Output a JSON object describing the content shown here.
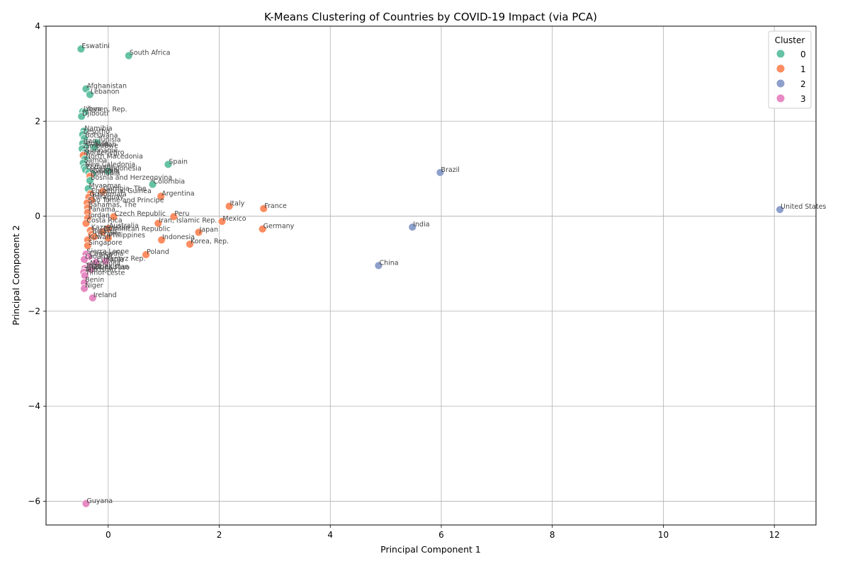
{
  "chart_data": {
    "type": "scatter",
    "title": "K-Means Clustering of Countries by COVID-19 Impact (via PCA)",
    "xlabel": "Principal Component 1",
    "ylabel": "Principal Component 2",
    "xlim": [
      -1.12,
      12.75
    ],
    "ylim": [
      -6.5,
      4.0
    ],
    "xticks": [
      0,
      2,
      4,
      6,
      8,
      10,
      12
    ],
    "yticks": [
      -6,
      -4,
      -2,
      0,
      2,
      4
    ],
    "xtick_labels": [
      "0",
      "2",
      "4",
      "6",
      "8",
      "10",
      "12"
    ],
    "ytick_labels": [
      "−6",
      "−4",
      "−2",
      "0",
      "2",
      "4"
    ],
    "grid": true,
    "legend": {
      "title": "Cluster",
      "placement": "top-right",
      "entries": [
        {
          "label": "0",
          "color": "#66c2a5"
        },
        {
          "label": "1",
          "color": "#fc8d62"
        },
        {
          "label": "2",
          "color": "#8da0cb"
        },
        {
          "label": "3",
          "color": "#e78ac3"
        }
      ]
    },
    "colors": {
      "0": "#66c2a5",
      "1": "#fc8d62",
      "2": "#8da0cb",
      "3": "#e78ac3"
    },
    "points": [
      {
        "name": "Eswatini",
        "x": -0.49,
        "y": 3.52,
        "cluster": 0
      },
      {
        "name": "South Africa",
        "x": 0.37,
        "y": 3.38,
        "cluster": 0
      },
      {
        "name": "Afghanistan",
        "x": -0.4,
        "y": 2.68,
        "cluster": 0
      },
      {
        "name": "Lebanon",
        "x": -0.33,
        "y": 2.56,
        "cluster": 0
      },
      {
        "name": "Libya",
        "x": -0.46,
        "y": 2.2,
        "cluster": 0
      },
      {
        "name": "Yemen, Rep.",
        "x": -0.42,
        "y": 2.19,
        "cluster": 0
      },
      {
        "name": "Djibouti",
        "x": -0.48,
        "y": 2.1,
        "cluster": 0
      },
      {
        "name": "Namibia",
        "x": -0.44,
        "y": 1.79,
        "cluster": 0
      },
      {
        "name": "Lesotho",
        "x": -0.46,
        "y": 1.72,
        "cluster": 0
      },
      {
        "name": "Botswana",
        "x": -0.43,
        "y": 1.64,
        "cluster": 0
      },
      {
        "name": "Tunisia",
        "x": -0.2,
        "y": 1.55,
        "cluster": 0
      },
      {
        "name": "Iraq",
        "x": -0.46,
        "y": 1.53,
        "cluster": 0
      },
      {
        "name": "Bolivia",
        "x": -0.41,
        "y": 1.47,
        "cluster": 0
      },
      {
        "name": "Sudan",
        "x": -0.25,
        "y": 1.45,
        "cluster": 0
      },
      {
        "name": "Zimbabwe",
        "x": -0.47,
        "y": 1.42,
        "cluster": 0
      },
      {
        "name": "Suriname",
        "x": -0.42,
        "y": 1.33,
        "cluster": 0
      },
      {
        "name": "Montenegro",
        "x": -0.45,
        "y": 1.28,
        "cluster": 1
      },
      {
        "name": "North Macedonia",
        "x": -0.42,
        "y": 1.2,
        "cluster": 0
      },
      {
        "name": "Samoa",
        "x": -0.45,
        "y": 1.12,
        "cluster": 0
      },
      {
        "name": "New Caledonia",
        "x": -0.43,
        "y": 1.03,
        "cluster": 0
      },
      {
        "name": "Ecuador",
        "x": -0.41,
        "y": 0.98,
        "cluster": 0
      },
      {
        "name": "Indonesia",
        "x": 0.0,
        "y": 0.95,
        "cluster": 0
      },
      {
        "name": "Moldova",
        "x": -0.35,
        "y": 0.92,
        "cluster": 0
      },
      {
        "name": "Georgia",
        "x": -0.28,
        "y": 0.89,
        "cluster": 0
      },
      {
        "name": "Romania",
        "x": -0.33,
        "y": 0.84,
        "cluster": 1
      },
      {
        "name": "Bosnia and Herzegovina",
        "x": -0.33,
        "y": 0.75,
        "cluster": 0
      },
      {
        "name": "Colombia",
        "x": 0.8,
        "y": 0.67,
        "cluster": 0
      },
      {
        "name": "Myanmar",
        "x": -0.36,
        "y": 0.58,
        "cluster": 0
      },
      {
        "name": "Gambia, The",
        "x": -0.1,
        "y": 0.52,
        "cluster": 1
      },
      {
        "name": "Equatorial Guinea",
        "x": -0.32,
        "y": 0.47,
        "cluster": 1
      },
      {
        "name": "Argentina",
        "x": 0.95,
        "y": 0.42,
        "cluster": 1
      },
      {
        "name": "Guatemala",
        "x": -0.35,
        "y": 0.4,
        "cluster": 1
      },
      {
        "name": "Paraguay",
        "x": -0.3,
        "y": 0.34,
        "cluster": 1
      },
      {
        "name": "Sao Tome and Principe",
        "x": -0.38,
        "y": 0.28,
        "cluster": 1
      },
      {
        "name": "Spain",
        "x": 1.08,
        "y": 1.09,
        "cluster": 0
      },
      {
        "name": "Italy",
        "x": 2.18,
        "y": 0.21,
        "cluster": 1
      },
      {
        "name": "France",
        "x": 2.8,
        "y": 0.16,
        "cluster": 1
      },
      {
        "name": "Bahamas, The",
        "x": -0.37,
        "y": 0.18,
        "cluster": 1
      },
      {
        "name": "Panama",
        "x": -0.37,
        "y": 0.08,
        "cluster": 1
      },
      {
        "name": "Czech Republic",
        "x": 0.1,
        "y": -0.01,
        "cluster": 1
      },
      {
        "name": "Peru",
        "x": 1.18,
        "y": -0.01,
        "cluster": 1
      },
      {
        "name": "Jordan",
        "x": -0.37,
        "y": -0.04,
        "cluster": 1
      },
      {
        "name": "Mexico",
        "x": 2.05,
        "y": -0.11,
        "cluster": 1
      },
      {
        "name": "Iran, Islamic Rep.",
        "x": 0.9,
        "y": -0.15,
        "cluster": 1
      },
      {
        "name": "Costa Rica",
        "x": -0.4,
        "y": -0.15,
        "cluster": 1
      },
      {
        "name": "Germany",
        "x": 2.78,
        "y": -0.27,
        "cluster": 1
      },
      {
        "name": "Australia",
        "x": 0.0,
        "y": -0.26,
        "cluster": 1
      },
      {
        "name": "Kazakhstan",
        "x": -0.32,
        "y": -0.3,
        "cluster": 1
      },
      {
        "name": "Dominican Republic",
        "x": -0.1,
        "y": -0.33,
        "cluster": 1
      },
      {
        "name": "Japan",
        "x": 1.63,
        "y": -0.34,
        "cluster": 1
      },
      {
        "name": "Belarus",
        "x": -0.3,
        "y": -0.38,
        "cluster": 1
      },
      {
        "name": "Ukraine",
        "x": -0.25,
        "y": -0.43,
        "cluster": 1
      },
      {
        "name": "Philippines",
        "x": 0.0,
        "y": -0.46,
        "cluster": 1
      },
      {
        "name": "Indonesia",
        "x": 0.96,
        "y": -0.5,
        "cluster": 1
      },
      {
        "name": "Kuwait",
        "x": -0.37,
        "y": -0.5,
        "cluster": 1
      },
      {
        "name": "Korea, Rep.",
        "x": 1.47,
        "y": -0.59,
        "cluster": 1
      },
      {
        "name": "Singapore",
        "x": -0.37,
        "y": -0.62,
        "cluster": 1
      },
      {
        "name": "Sierra Leone",
        "x": -0.4,
        "y": -0.8,
        "cluster": 3
      },
      {
        "name": "Poland",
        "x": 0.68,
        "y": -0.81,
        "cluster": 1
      },
      {
        "name": "Cambodia",
        "x": -0.35,
        "y": -0.85,
        "cluster": 3
      },
      {
        "name": "Lao PDR",
        "x": -0.43,
        "y": -0.91,
        "cluster": 3
      },
      {
        "name": "Kyrgyz Rep.",
        "x": -0.05,
        "y": -0.95,
        "cluster": 3
      },
      {
        "name": "Ethiopia",
        "x": -0.22,
        "y": -0.97,
        "cluster": 3
      },
      {
        "name": "Mongolia",
        "x": -0.34,
        "y": -1.05,
        "cluster": 3
      },
      {
        "name": "Togo",
        "x": -0.42,
        "y": -1.1,
        "cluster": 3
      },
      {
        "name": "Burkina Faso",
        "x": -0.4,
        "y": -1.14,
        "cluster": 3
      },
      {
        "name": "Uzbekistan",
        "x": -0.31,
        "y": -1.12,
        "cluster": 3
      },
      {
        "name": "Tajikistan",
        "x": -0.44,
        "y": -1.18,
        "cluster": 3
      },
      {
        "name": "Timor-Leste",
        "x": -0.42,
        "y": -1.25,
        "cluster": 3
      },
      {
        "name": "Benin",
        "x": -0.43,
        "y": -1.4,
        "cluster": 3
      },
      {
        "name": "Niger",
        "x": -0.43,
        "y": -1.52,
        "cluster": 3
      },
      {
        "name": "Ireland",
        "x": -0.28,
        "y": -1.72,
        "cluster": 3
      },
      {
        "name": "Guyana",
        "x": -0.4,
        "y": -6.05,
        "cluster": 3
      },
      {
        "name": "Brazil",
        "x": 5.98,
        "y": 0.92,
        "cluster": 2
      },
      {
        "name": "United States",
        "x": 12.1,
        "y": 0.14,
        "cluster": 2
      },
      {
        "name": "India",
        "x": 5.48,
        "y": -0.23,
        "cluster": 2
      },
      {
        "name": "China",
        "x": 4.87,
        "y": -1.04,
        "cluster": 2
      }
    ]
  }
}
